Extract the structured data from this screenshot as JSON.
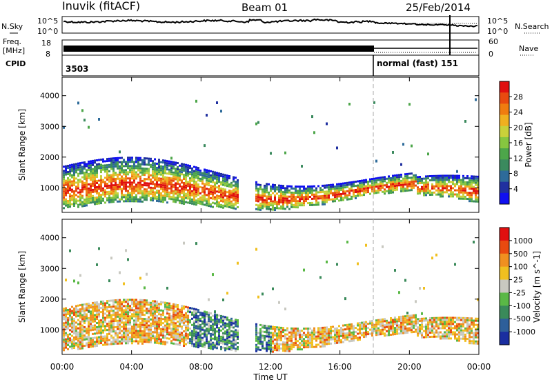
{
  "header": {
    "station": "Inuvik (fitACF)",
    "beam": "Beam 01",
    "date": "25/Feb/2014"
  },
  "top_panels": {
    "nsky_label": "N.Sky",
    "nsearch_label": "N.Search",
    "nsky_ticks": [
      "10^5",
      "10^0"
    ],
    "nsearch_ticks": [
      "10^5",
      "10^0"
    ],
    "freq_label_line1": "Freq.",
    "freq_label_line2": "[MHz]",
    "freq_ticks": [
      "18",
      "8"
    ],
    "nave_label": "Nave",
    "nave_ticks": [
      "60",
      "0"
    ],
    "cpid_label": "CPID",
    "cpid_left_value": "3503",
    "cpid_right_value": "normal (fast) 151"
  },
  "chart_data": [
    {
      "type": "heatmap",
      "name": "power",
      "ylabel": "Slant Range [km]",
      "ylim": [
        200,
        4600
      ],
      "yticks": [
        "1000",
        "2000",
        "3000",
        "4000"
      ],
      "colorbar_label": "Power [dB]",
      "colorbar_ticks": [
        "4",
        "8",
        "12",
        "16",
        "20",
        "24",
        "28"
      ],
      "colors": [
        "#1010f0",
        "#2030a0",
        "#2e6b9a",
        "#3b8a5e",
        "#4da64a",
        "#86c640",
        "#c9d13a",
        "#f0b020",
        "#f07c10",
        "#e84a10",
        "#e01010"
      ]
    },
    {
      "type": "heatmap",
      "name": "velocity",
      "ylabel": "Slant Range [km]",
      "ylim": [
        200,
        4600
      ],
      "yticks": [
        "1000",
        "2000",
        "3000",
        "4000"
      ],
      "colorbar_label": "Velocity [m s^-1]",
      "colorbar_ticks": [
        "1000",
        "500",
        "100",
        "25",
        "-25",
        "-100",
        "-500",
        "-1000"
      ],
      "colors": [
        "#1a2ea0",
        "#2e5f9a",
        "#3a8a5a",
        "#5ab846",
        "#c8c8c0",
        "#f0c020",
        "#f09020",
        "#e84a10",
        "#e01010"
      ]
    }
  ],
  "x_axis": {
    "label": "Time UT",
    "ticks": [
      "00:00",
      "04:00",
      "08:00",
      "12:00",
      "16:00",
      "20:00",
      "00:00"
    ]
  }
}
